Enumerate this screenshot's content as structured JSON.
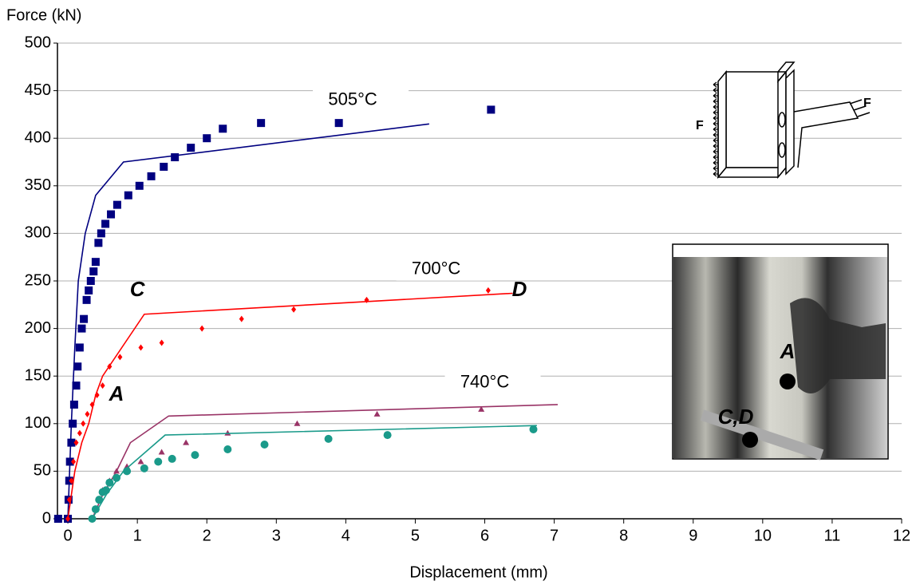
{
  "chart_data": {
    "type": "scatter",
    "y_label": "Force  (kN)",
    "x_label": "Displacement  (mm)",
    "xlim": [
      -0.15,
      12
    ],
    "ylim": [
      0,
      500
    ],
    "xticks": [
      0,
      1,
      2,
      3,
      4,
      5,
      6,
      7,
      8,
      9,
      10,
      11,
      12
    ],
    "yticks": [
      0,
      50,
      100,
      150,
      200,
      250,
      300,
      350,
      400,
      450,
      500
    ],
    "grid": true,
    "annotations": [
      "505°C",
      "700°C",
      "740°C",
      "C",
      "D",
      "A"
    ],
    "inset_labels": [
      "A",
      "C,D"
    ],
    "schematic_labels": [
      "F",
      "F"
    ],
    "series": [
      {
        "style": "markers",
        "marker": "square",
        "color": "#000080",
        "x": [
          -0.14,
          0,
          0.01,
          0.02,
          0.03,
          0.05,
          0.07,
          0.09,
          0.12,
          0.14,
          0.17,
          0.2,
          0.23,
          0.27,
          0.3,
          0.33,
          0.37,
          0.4,
          0.44,
          0.48,
          0.54,
          0.62,
          0.71,
          0.87,
          1.03,
          1.2,
          1.38,
          1.54,
          1.77,
          2.0,
          2.23,
          2.78,
          3.9,
          6.09
        ],
        "values": [
          0,
          0,
          20,
          40,
          60,
          80,
          100,
          120,
          140,
          160,
          180,
          200,
          210,
          230,
          240,
          250,
          260,
          270,
          290,
          300,
          310,
          320,
          330,
          340,
          350,
          360,
          370,
          380,
          390,
          400,
          410,
          416,
          416,
          430
        ]
      },
      {
        "style": "line",
        "color": "#000080",
        "x": [
          0,
          0.05,
          0.1,
          0.15,
          0.25,
          0.4,
          0.8,
          5.2
        ],
        "values": [
          0,
          100,
          180,
          250,
          300,
          340,
          375,
          415
        ]
      },
      {
        "style": "markers",
        "marker": "diamond",
        "color": "#ff0000",
        "x": [
          0,
          0.02,
          0.05,
          0.08,
          0.12,
          0.17,
          0.22,
          0.28,
          0.35,
          0.42,
          0.5,
          0.6,
          0.75,
          1.05,
          1.35,
          1.93,
          2.5,
          3.25,
          4.3,
          6.05
        ],
        "values": [
          0,
          20,
          40,
          60,
          80,
          90,
          100,
          110,
          120,
          130,
          140,
          160,
          170,
          180,
          185,
          200,
          210,
          220,
          230,
          240
        ]
      },
      {
        "style": "line",
        "color": "#ff0000",
        "x": [
          0,
          0.1,
          0.2,
          0.3,
          0.4,
          0.5,
          1.1,
          6.4
        ],
        "values": [
          0,
          50,
          80,
          100,
          130,
          150,
          215,
          237
        ]
      },
      {
        "style": "markers",
        "marker": "triangle",
        "color": "#993366",
        "x": [
          0.35,
          0.4,
          0.45,
          0.5,
          0.6,
          0.7,
          0.85,
          1.05,
          1.35,
          1.7,
          2.3,
          3.3,
          4.45,
          5.95
        ],
        "values": [
          0,
          10,
          20,
          30,
          40,
          50,
          55,
          60,
          70,
          80,
          90,
          100,
          110,
          115
        ]
      },
      {
        "style": "line",
        "color": "#993366",
        "x": [
          0.35,
          0.5,
          0.7,
          0.9,
          1.45,
          7.05
        ],
        "values": [
          0,
          25,
          50,
          80,
          108,
          120
        ]
      },
      {
        "style": "markers",
        "marker": "circle",
        "color": "#1a9a8a",
        "x": [
          0.35,
          0.4,
          0.45,
          0.5,
          0.55,
          0.6,
          0.7,
          0.85,
          1.1,
          1.3,
          1.5,
          1.83,
          2.3,
          2.83,
          3.75,
          4.6,
          6.7
        ],
        "values": [
          0,
          10,
          20,
          28,
          30,
          38,
          43,
          50,
          53,
          60,
          63,
          67,
          73,
          78,
          84,
          88,
          94
        ]
      },
      {
        "style": "line",
        "color": "#1a9a8a",
        "x": [
          0.35,
          0.55,
          0.8,
          1.4,
          6.75
        ],
        "values": [
          0,
          25,
          50,
          88,
          98
        ]
      }
    ]
  }
}
